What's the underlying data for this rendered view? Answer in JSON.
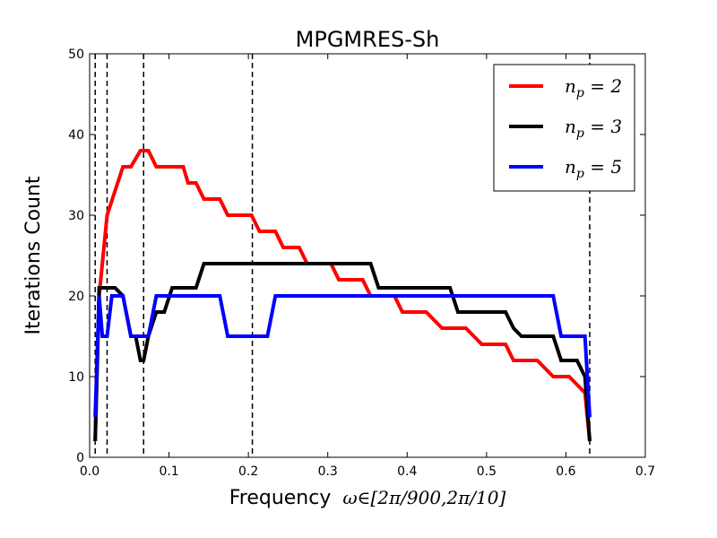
{
  "chart_data": {
    "type": "line",
    "title": "MPGMRES-Sh",
    "xlabel": "Frequency",
    "xlabel_math": "ω∈[2π/900,2π/10]",
    "ylabel": "Iterations Count",
    "xlim": [
      0,
      0.7
    ],
    "ylim": [
      0,
      50
    ],
    "xticks": [
      0.0,
      0.1,
      0.2,
      0.3,
      0.4,
      0.5,
      0.6,
      0.7
    ],
    "xtick_labels": [
      "0.0",
      "0.1",
      "0.2",
      "0.3",
      "0.4",
      "0.5",
      "0.6",
      "0.7"
    ],
    "yticks": [
      0,
      10,
      20,
      30,
      40,
      50
    ],
    "ytick_labels": [
      "0",
      "10",
      "20",
      "30",
      "40",
      "50"
    ],
    "grid": false,
    "legend_position": "top-right",
    "vlines": [
      0.007,
      0.022,
      0.068,
      0.205,
      0.63
    ],
    "series": [
      {
        "name": "n_p = 2",
        "label_base": "n",
        "label_sub": "p",
        "label_rest": " = 2",
        "color": "#ff0000",
        "x": [
          0.007,
          0.012,
          0.022,
          0.032,
          0.042,
          0.052,
          0.058,
          0.064,
          0.074,
          0.084,
          0.094,
          0.104,
          0.114,
          0.118,
          0.124,
          0.134,
          0.144,
          0.154,
          0.164,
          0.174,
          0.184,
          0.194,
          0.204,
          0.214,
          0.224,
          0.234,
          0.244,
          0.254,
          0.264,
          0.274,
          0.284,
          0.294,
          0.304,
          0.314,
          0.324,
          0.334,
          0.344,
          0.354,
          0.364,
          0.374,
          0.384,
          0.394,
          0.404,
          0.414,
          0.424,
          0.434,
          0.444,
          0.454,
          0.464,
          0.474,
          0.484,
          0.494,
          0.504,
          0.514,
          0.524,
          0.534,
          0.544,
          0.554,
          0.564,
          0.574,
          0.584,
          0.594,
          0.604,
          0.614,
          0.624,
          0.63
        ],
        "y": [
          2,
          20,
          30,
          33,
          36,
          36,
          37,
          38,
          38,
          36,
          36,
          36,
          36,
          36,
          34,
          34,
          32,
          32,
          32,
          30,
          30,
          30,
          30,
          28,
          28,
          28,
          26,
          26,
          26,
          24,
          24,
          24,
          24,
          22,
          22,
          22,
          22,
          20,
          20,
          20,
          20,
          18,
          18,
          18,
          18,
          17,
          16,
          16,
          16,
          16,
          15,
          14,
          14,
          14,
          14,
          12,
          12,
          12,
          12,
          11,
          10,
          10,
          10,
          9,
          8,
          2
        ]
      },
      {
        "name": "n_p = 3",
        "label_base": "n",
        "label_sub": "p",
        "label_rest": " = 3",
        "color": "#000000",
        "x": [
          0.007,
          0.012,
          0.022,
          0.032,
          0.042,
          0.052,
          0.058,
          0.064,
          0.068,
          0.074,
          0.084,
          0.094,
          0.104,
          0.114,
          0.124,
          0.134,
          0.144,
          0.154,
          0.164,
          0.174,
          0.184,
          0.194,
          0.204,
          0.214,
          0.224,
          0.234,
          0.244,
          0.254,
          0.264,
          0.274,
          0.284,
          0.294,
          0.304,
          0.314,
          0.324,
          0.334,
          0.344,
          0.354,
          0.364,
          0.374,
          0.384,
          0.394,
          0.404,
          0.414,
          0.424,
          0.434,
          0.444,
          0.454,
          0.464,
          0.474,
          0.484,
          0.494,
          0.504,
          0.514,
          0.524,
          0.534,
          0.544,
          0.554,
          0.564,
          0.574,
          0.584,
          0.594,
          0.604,
          0.614,
          0.624,
          0.63
        ],
        "y": [
          2,
          21,
          21,
          21,
          20,
          15,
          15,
          12,
          12,
          15,
          18,
          18,
          21,
          21,
          21,
          21,
          24,
          24,
          24,
          24,
          24,
          24,
          24,
          24,
          24,
          24,
          24,
          24,
          24,
          24,
          24,
          24,
          24,
          24,
          24,
          24,
          24,
          24,
          21,
          21,
          21,
          21,
          21,
          21,
          21,
          21,
          21,
          21,
          18,
          18,
          18,
          18,
          18,
          18,
          18,
          16,
          15,
          15,
          15,
          15,
          15,
          12,
          12,
          12,
          10,
          2
        ]
      },
      {
        "name": "n_p = 5",
        "label_base": "n",
        "label_sub": "p",
        "label_rest": " = 5",
        "color": "#0000ff",
        "x": [
          0.007,
          0.012,
          0.016,
          0.022,
          0.028,
          0.032,
          0.042,
          0.052,
          0.058,
          0.064,
          0.074,
          0.084,
          0.094,
          0.104,
          0.114,
          0.124,
          0.134,
          0.144,
          0.154,
          0.164,
          0.174,
          0.184,
          0.194,
          0.204,
          0.214,
          0.224,
          0.234,
          0.244,
          0.254,
          0.264,
          0.274,
          0.284,
          0.294,
          0.304,
          0.314,
          0.324,
          0.334,
          0.344,
          0.354,
          0.364,
          0.374,
          0.384,
          0.394,
          0.404,
          0.414,
          0.424,
          0.434,
          0.444,
          0.454,
          0.464,
          0.474,
          0.484,
          0.494,
          0.504,
          0.514,
          0.524,
          0.534,
          0.544,
          0.554,
          0.564,
          0.574,
          0.584,
          0.594,
          0.604,
          0.614,
          0.624,
          0.63
        ],
        "y": [
          5,
          20,
          15,
          15,
          20,
          20,
          20,
          15,
          15,
          15,
          15,
          20,
          20,
          20,
          20,
          20,
          20,
          20,
          20,
          20,
          15,
          15,
          15,
          15,
          15,
          15,
          20,
          20,
          20,
          20,
          20,
          20,
          20,
          20,
          20,
          20,
          20,
          20,
          20,
          20,
          20,
          20,
          20,
          20,
          20,
          20,
          20,
          20,
          20,
          20,
          20,
          20,
          20,
          20,
          20,
          20,
          20,
          20,
          20,
          20,
          20,
          20,
          15,
          15,
          15,
          15,
          5
        ]
      }
    ]
  }
}
